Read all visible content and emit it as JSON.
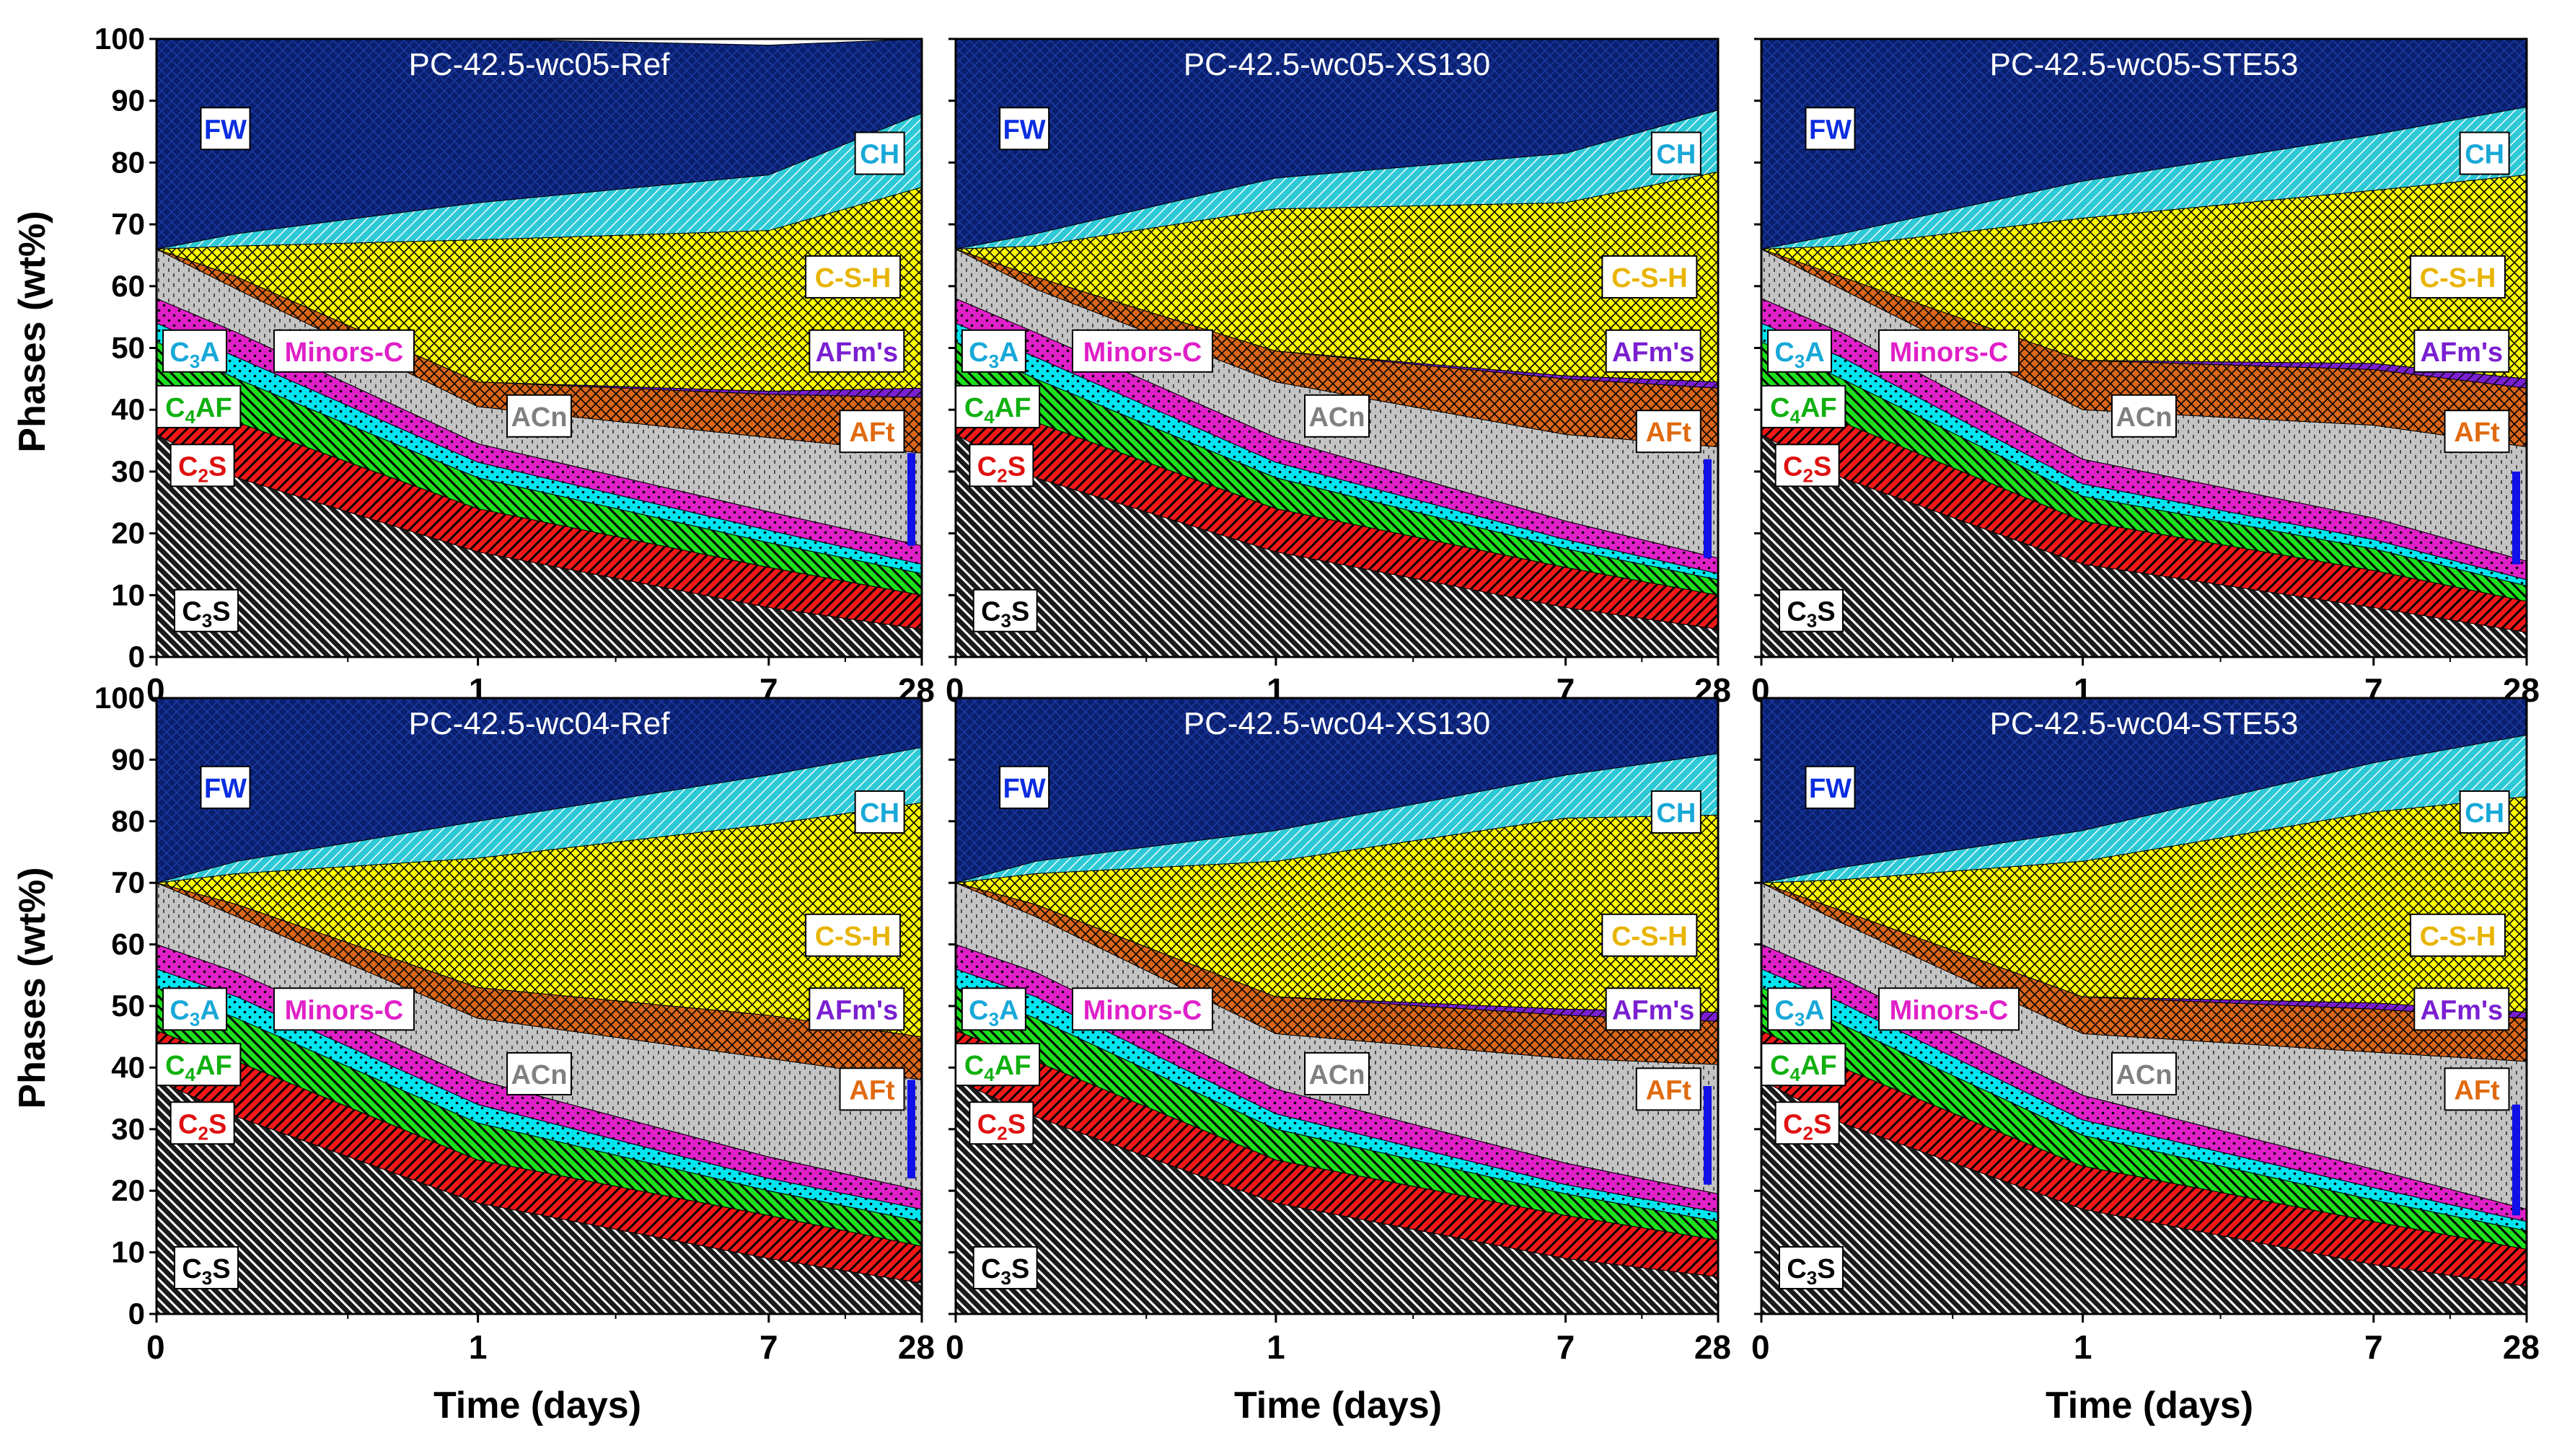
{
  "figure": {
    "y_axis_label": "Phases (wt%)",
    "x_axis_label": "Time (days)",
    "x_tick_labels": [
      "0",
      "1",
      "7",
      "28"
    ],
    "y_tick_labels": [
      "0",
      "10",
      "20",
      "30",
      "40",
      "50",
      "60",
      "70",
      "80",
      "90",
      "100"
    ]
  },
  "phase_labels": {
    "FW": "FW",
    "CH": "CH",
    "CSH": "C-S-H",
    "AFm": "AFm's",
    "AFt": "AFt",
    "ACn": "ACn",
    "Minors": "Minors-C",
    "C3A": "C3A",
    "C4AF": "C4AF",
    "C2S": "C2S",
    "C3S": "C3S"
  },
  "colors": {
    "FW": "#0a1f6e",
    "CH": "#2ec9d6",
    "CSH": "#ffff00",
    "AFm": "#7a1fd1",
    "AFt": "#d9661a",
    "ACn": "#c4c4c4",
    "Minors": "#e020c8",
    "C3A": "#00e5f0",
    "C4AF": "#1ee01e",
    "C2S": "#f01818",
    "C3S": "#1a1a1a",
    "label_FW": "#0b2de0",
    "label_CH": "#18a8d8",
    "label_CSH": "#e8b400",
    "label_AFm": "#7a1fd1",
    "label_AFt": "#e06a10",
    "label_ACn": "#808080",
    "label_Minors": "#e020c8",
    "label_C3A": "#18a8d8",
    "label_C4AF": "#10b010",
    "label_C2S": "#e01010",
    "label_C3S": "#000000",
    "marker": "#1010e8"
  },
  "chart_data": [
    {
      "type": "area",
      "title": "PC-42.5-wc05-Ref",
      "x_days": [
        0,
        0.25,
        1,
        7,
        28
      ],
      "ylim": [
        0,
        100
      ],
      "xlabel": "Time (days)",
      "ylabel": "Phases (wt%)",
      "series": [
        {
          "name": "C3S",
          "values": [
            36,
            29,
            17,
            8,
            4.5
          ]
        },
        {
          "name": "C2S",
          "values": [
            8,
            9,
            7,
            6.5,
            5.5
          ]
        },
        {
          "name": "C4AF",
          "values": [
            7,
            7,
            5,
            4,
            3.5
          ]
        },
        {
          "name": "C3A",
          "values": [
            3,
            3.5,
            2.5,
            2,
            1.5
          ]
        },
        {
          "name": "Minors",
          "values": [
            4,
            4,
            3,
            3,
            3
          ]
        },
        {
          "name": "ACn",
          "values": [
            8,
            7,
            6,
            12,
            15
          ]
        },
        {
          "name": "AFt",
          "values": [
            0,
            2,
            4,
            7,
            9
          ]
        },
        {
          "name": "AFm",
          "values": [
            0,
            0,
            0,
            0.5,
            1.5
          ]
        },
        {
          "name": "CSH",
          "values": [
            0,
            5,
            23,
            26,
            32.5
          ]
        },
        {
          "name": "CH",
          "values": [
            0,
            2,
            6,
            9,
            12
          ]
        },
        {
          "name": "FW",
          "values": [
            34,
            31.5,
            26.5,
            21,
            12
          ]
        }
      ],
      "marker_range": [
        18,
        33
      ]
    },
    {
      "type": "area",
      "title": "PC-42.5-wc05-XS130",
      "x_days": [
        0,
        0.25,
        1,
        7,
        28
      ],
      "ylim": [
        0,
        100
      ],
      "xlabel": "Time (days)",
      "ylabel": "Phases (wt%)",
      "series": [
        {
          "name": "C3S",
          "values": [
            36,
            29,
            17,
            8,
            4.5
          ]
        },
        {
          "name": "C2S",
          "values": [
            8,
            9,
            7,
            6.5,
            5.5
          ]
        },
        {
          "name": "C4AF",
          "values": [
            7,
            7,
            5,
            3,
            2.5
          ]
        },
        {
          "name": "C3A",
          "values": [
            3,
            3.5,
            2.5,
            1.5,
            1
          ]
        },
        {
          "name": "Minors",
          "values": [
            4,
            4,
            4,
            3,
            2.5
          ]
        },
        {
          "name": "ACn",
          "values": [
            8,
            7,
            9,
            14,
            18
          ]
        },
        {
          "name": "AFt",
          "values": [
            0,
            2,
            5,
            9,
            9.5
          ]
        },
        {
          "name": "AFm",
          "values": [
            0,
            0,
            0,
            0.5,
            1
          ]
        },
        {
          "name": "CSH",
          "values": [
            0,
            5,
            23,
            28,
            34
          ]
        },
        {
          "name": "CH",
          "values": [
            0,
            2,
            5,
            8,
            10
          ]
        },
        {
          "name": "FW",
          "values": [
            34,
            31.5,
            22.5,
            18.5,
            11.5
          ]
        }
      ],
      "marker_range": [
        16,
        32
      ]
    },
    {
      "type": "area",
      "title": "PC-42.5-wc05-STE53",
      "x_days": [
        0,
        0.25,
        1,
        7,
        28
      ],
      "ylim": [
        0,
        100
      ],
      "xlabel": "Time (days)",
      "ylabel": "Phases (wt%)",
      "series": [
        {
          "name": "C3S",
          "values": [
            36,
            29,
            15,
            8,
            4
          ]
        },
        {
          "name": "C2S",
          "values": [
            8,
            9,
            7,
            6,
            5
          ]
        },
        {
          "name": "C4AF",
          "values": [
            7,
            7,
            4,
            3.5,
            2.5
          ]
        },
        {
          "name": "C3A",
          "values": [
            3,
            3.5,
            2,
            1.5,
            1
          ]
        },
        {
          "name": "Minors",
          "values": [
            4,
            4,
            4,
            3.5,
            3
          ]
        },
        {
          "name": "ACn",
          "values": [
            8,
            7,
            8,
            15,
            18.5
          ]
        },
        {
          "name": "AFt",
          "values": [
            0,
            2,
            8,
            9,
            9.5
          ]
        },
        {
          "name": "AFm",
          "values": [
            0,
            0,
            0,
            1,
            1.5
          ]
        },
        {
          "name": "CSH",
          "values": [
            0,
            5,
            23,
            28,
            33
          ]
        },
        {
          "name": "CH",
          "values": [
            0,
            2,
            6,
            9,
            11
          ]
        },
        {
          "name": "FW",
          "values": [
            34,
            31.5,
            23,
            15.5,
            11
          ]
        }
      ],
      "marker_range": [
        15,
        30
      ]
    },
    {
      "type": "area",
      "title": "PC-42.5-wc04-Ref",
      "x_days": [
        0,
        0.25,
        1,
        7,
        28
      ],
      "ylim": [
        0,
        100
      ],
      "xlabel": "Time (days)",
      "ylabel": "Phases (wt%)",
      "series": [
        {
          "name": "C3S",
          "values": [
            38,
            32,
            18,
            9,
            5
          ]
        },
        {
          "name": "C2S",
          "values": [
            8,
            9,
            7,
            7,
            6
          ]
        },
        {
          "name": "C4AF",
          "values": [
            7,
            7,
            6,
            4,
            4
          ]
        },
        {
          "name": "C3A",
          "values": [
            3,
            3.5,
            3,
            2,
            2
          ]
        },
        {
          "name": "Minors",
          "values": [
            4,
            4,
            4,
            3.5,
            3
          ]
        },
        {
          "name": "ACn",
          "values": [
            10,
            9,
            10,
            16,
            18
          ]
        },
        {
          "name": "AFt",
          "values": [
            0,
            2,
            5,
            7,
            7
          ]
        },
        {
          "name": "AFm",
          "values": [
            0,
            0,
            0,
            0,
            0
          ]
        },
        {
          "name": "CSH",
          "values": [
            0,
            5,
            21,
            31,
            38
          ]
        },
        {
          "name": "CH",
          "values": [
            0,
            2,
            6,
            8,
            9
          ]
        },
        {
          "name": "FW",
          "values": [
            30,
            26.5,
            20,
            12.5,
            8
          ]
        }
      ],
      "marker_range": [
        22,
        38
      ]
    },
    {
      "type": "area",
      "title": "PC-42.5-wc04-XS130",
      "x_days": [
        0,
        0.25,
        1,
        7,
        28
      ],
      "ylim": [
        0,
        100
      ],
      "xlabel": "Time (days)",
      "ylabel": "Phases (wt%)",
      "series": [
        {
          "name": "C3S",
          "values": [
            38,
            32,
            18,
            9,
            6
          ]
        },
        {
          "name": "C2S",
          "values": [
            8,
            9,
            7,
            7,
            6
          ]
        },
        {
          "name": "C4AF",
          "values": [
            7,
            7,
            5,
            3.5,
            3
          ]
        },
        {
          "name": "C3A",
          "values": [
            3,
            3.5,
            2.5,
            1.5,
            1.5
          ]
        },
        {
          "name": "Minors",
          "values": [
            4,
            4,
            4,
            3.5,
            3
          ]
        },
        {
          "name": "ACn",
          "values": [
            10,
            9,
            9,
            17,
            21
          ]
        },
        {
          "name": "AFt",
          "values": [
            0,
            2,
            6,
            7,
            7
          ]
        },
        {
          "name": "AFm",
          "values": [
            0,
            0,
            0,
            1,
            1.5
          ]
        },
        {
          "name": "CSH",
          "values": [
            0,
            5,
            22,
            31,
            32
          ]
        },
        {
          "name": "CH",
          "values": [
            0,
            2,
            5,
            7,
            10
          ]
        },
        {
          "name": "FW",
          "values": [
            30,
            26.5,
            21.5,
            13,
            9
          ]
        }
      ],
      "marker_range": [
        21,
        37
      ]
    },
    {
      "type": "area",
      "title": "PC-42.5-wc04-STE53",
      "x_days": [
        0,
        0.25,
        1,
        7,
        28
      ],
      "ylim": [
        0,
        100
      ],
      "xlabel": "Time (days)",
      "ylabel": "Phases (wt%)",
      "series": [
        {
          "name": "C3S",
          "values": [
            38,
            31,
            17,
            8,
            4.5
          ]
        },
        {
          "name": "C2S",
          "values": [
            8,
            9,
            7,
            7,
            6
          ]
        },
        {
          "name": "C4AF",
          "values": [
            7,
            7,
            5,
            3.5,
            3
          ]
        },
        {
          "name": "C3A",
          "values": [
            3,
            3.5,
            2.5,
            2,
            1.5
          ]
        },
        {
          "name": "Minors",
          "values": [
            4,
            4,
            4,
            3,
            2
          ]
        },
        {
          "name": "ACn",
          "values": [
            10,
            9,
            10,
            19,
            24
          ]
        },
        {
          "name": "AFt",
          "values": [
            0,
            2,
            6,
            7,
            7
          ]
        },
        {
          "name": "AFm",
          "values": [
            0,
            0,
            0,
            1,
            1
          ]
        },
        {
          "name": "CSH",
          "values": [
            0,
            5,
            22,
            31,
            35
          ]
        },
        {
          "name": "CH",
          "values": [
            0,
            2,
            5,
            8,
            10
          ]
        },
        {
          "name": "FW",
          "values": [
            30,
            27.5,
            21.5,
            10.5,
            6
          ]
        }
      ],
      "marker_range": [
        16,
        34
      ]
    }
  ]
}
